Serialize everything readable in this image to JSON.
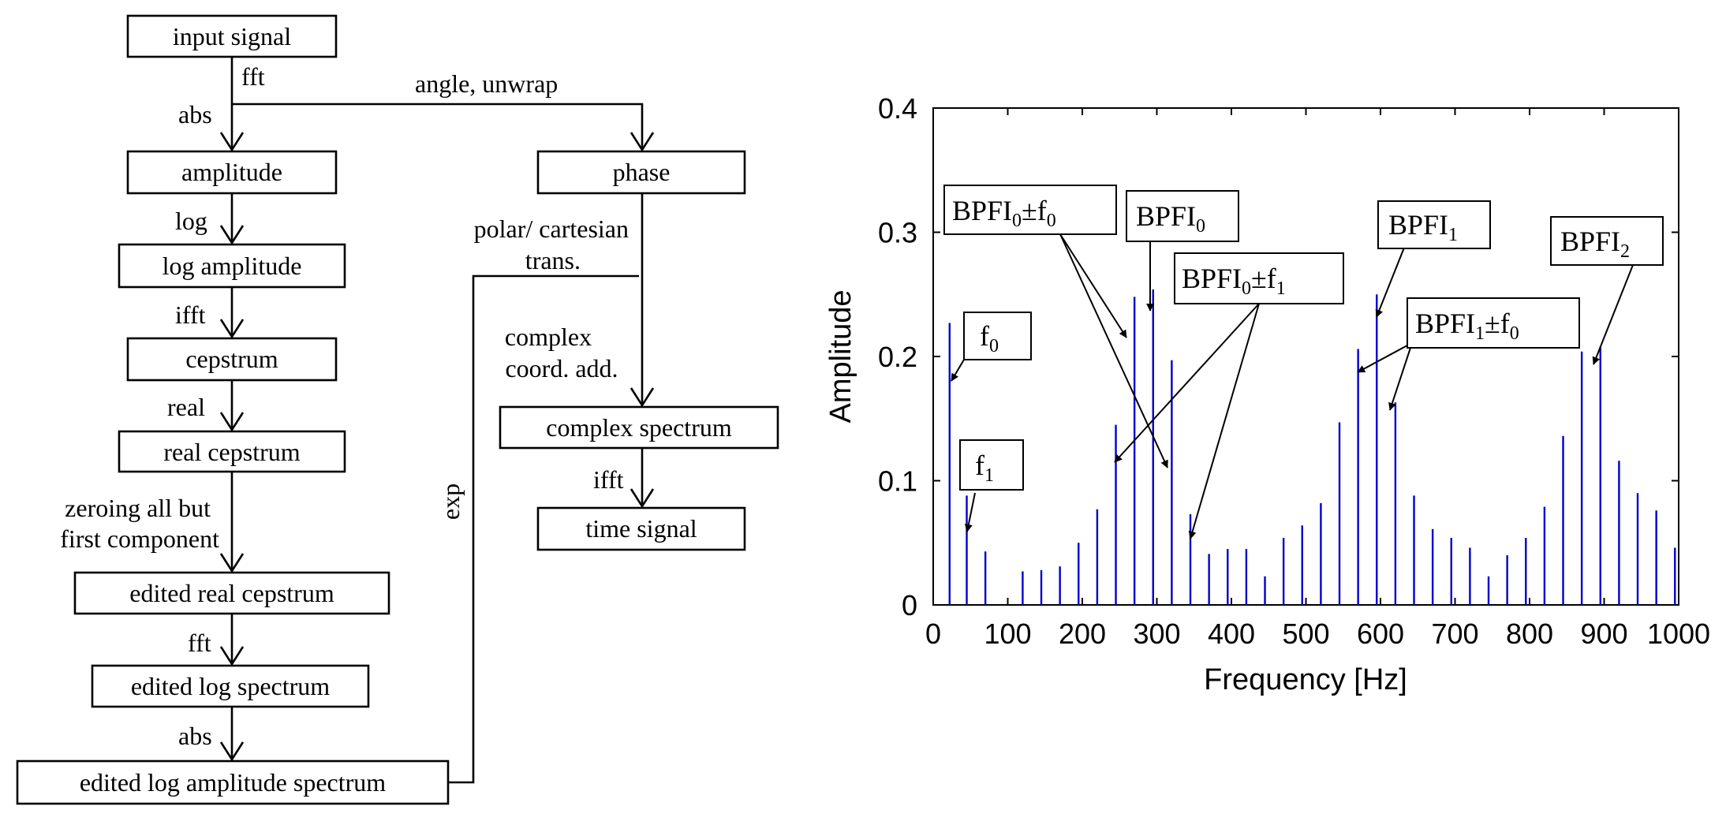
{
  "flowchart": {
    "nodes": {
      "input_signal": "input signal",
      "amplitude": "amplitude",
      "phase": "phase",
      "log_amplitude": "log amplitude",
      "cepstrum": "cepstrum",
      "real_cepstrum": "real cepstrum",
      "edited_real_cepstrum": "edited real cepstrum",
      "edited_log_spectrum": "edited log spectrum",
      "edited_log_amplitude_spectrum": "edited log amplitude spectrum",
      "complex_spectrum": "complex spectrum",
      "time_signal": "time signal"
    },
    "edges": {
      "fft_top": "fft",
      "abs_top": "abs",
      "angle_unwrap": "angle, unwrap",
      "log": "log",
      "ifft_left": "ifft",
      "real": "real",
      "zeroing_line1": "zeroing all but",
      "zeroing_line2": "first component",
      "fft_bottom": "fft",
      "abs_bottom": "abs",
      "polar_line1": "polar/ cartesian",
      "polar_line2": "trans.",
      "complex_line1": "complex",
      "complex_line2": "coord. add.",
      "ifft_right": "ifft",
      "exp": "exp"
    }
  },
  "chart_data": {
    "type": "bar",
    "xlabel": "Frequency [Hz]",
    "ylabel": "Amplitude",
    "xlim": [
      0,
      1000
    ],
    "ylim": [
      0,
      0.4
    ],
    "xticks": [
      0,
      100,
      200,
      300,
      400,
      500,
      600,
      700,
      800,
      900,
      1000
    ],
    "xtick_labels": [
      "0",
      "100",
      "200",
      "300",
      "400",
      "500",
      "600",
      "700",
      "800",
      "900",
      "1000"
    ],
    "yticks": [
      0,
      0.1,
      0.2,
      0.3,
      0.4
    ],
    "ytick_labels": [
      "0",
      "0.1",
      "0.2",
      "0.3",
      "0.4"
    ],
    "bar_color": "#0000cc",
    "x": [
      22,
      45,
      70,
      120,
      145,
      170,
      195,
      220,
      245,
      270,
      295,
      320,
      345,
      370,
      395,
      420,
      445,
      470,
      495,
      520,
      545,
      570,
      595,
      620,
      645,
      670,
      695,
      720,
      745,
      770,
      795,
      820,
      845,
      870,
      895,
      920,
      945,
      970,
      995
    ],
    "values": [
      0.227,
      0.088,
      0.043,
      0.027,
      0.028,
      0.031,
      0.05,
      0.077,
      0.145,
      0.248,
      0.254,
      0.197,
      0.073,
      0.041,
      0.045,
      0.045,
      0.023,
      0.054,
      0.064,
      0.082,
      0.147,
      0.206,
      0.25,
      0.163,
      0.088,
      0.061,
      0.054,
      0.046,
      0.023,
      0.04,
      0.054,
      0.079,
      0.136,
      0.204,
      0.208,
      0.116,
      0.09,
      0.076,
      0.046
    ],
    "annotations": [
      {
        "base": "f",
        "sub": "0",
        "rest": ""
      },
      {
        "base": "f",
        "sub": "1",
        "rest": ""
      },
      {
        "base": "BPFI",
        "sub": "0",
        "rest": "±f",
        "sub2": "0"
      },
      {
        "base": "BPFI",
        "sub": "0",
        "rest": ""
      },
      {
        "base": "BPFI",
        "sub": "0",
        "rest": "±f",
        "sub2": "1"
      },
      {
        "base": "BPFI",
        "sub": "1",
        "rest": ""
      },
      {
        "base": "BPFI",
        "sub": "1",
        "rest": "±f",
        "sub2": "0"
      },
      {
        "base": "BPFI",
        "sub": "2",
        "rest": ""
      }
    ]
  }
}
